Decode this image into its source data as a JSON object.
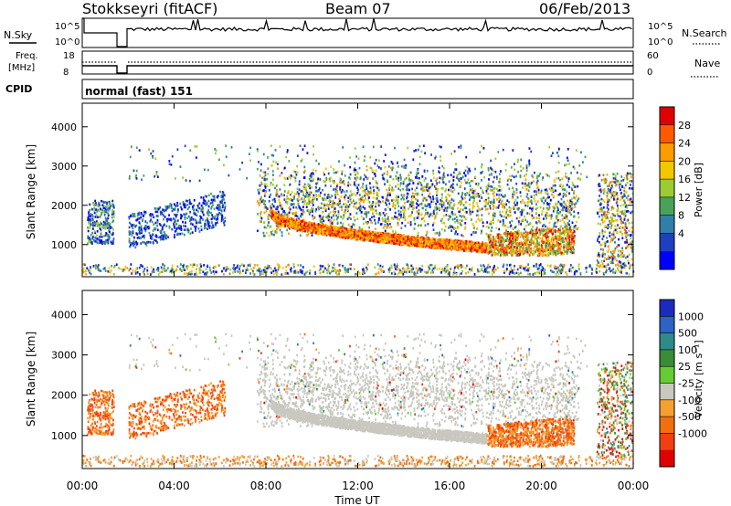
{
  "header": {
    "station": "Stokkseyri (fitACF)",
    "beam": "Beam 07",
    "date": "06/Feb/2013"
  },
  "panels": {
    "nsky_label": "N.Sky",
    "nsearch_label": "N.Search",
    "freq_label_1": "Freq.",
    "freq_label_2": "[MHz]",
    "nave_label": "Nave",
    "cpid_label": "CPID",
    "cpid_text": "normal (fast) 151",
    "nsky_ticks": [
      "10^5",
      "10^0"
    ],
    "nsearch_ticks": [
      "10^5",
      "10^0"
    ],
    "freq_ticks": [
      "18",
      "8"
    ],
    "nave_ticks": [
      "60",
      "0"
    ]
  },
  "colorbars": {
    "power": {
      "label": "Power [dB]",
      "ticks": [
        "28",
        "24",
        "20",
        "16",
        "12",
        "8",
        "4"
      ],
      "colors": [
        "#e00000",
        "#ff5a00",
        "#ff9a00",
        "#f2c800",
        "#9ccc32",
        "#4aa25a",
        "#2f7fa8",
        "#1f3fbf",
        "#0000ff"
      ]
    },
    "velocity": {
      "label": "Velocity [m s⁻¹]",
      "ticks": [
        "1000",
        "500",
        "100",
        "25",
        "-25",
        "-100",
        "-500",
        "-1000"
      ],
      "colors": [
        "#1c2bbf",
        "#2c63c4",
        "#2f8a8a",
        "#3a8c3a",
        "#66cc33",
        "#c8c8c0",
        "#f5a030",
        "#f07010",
        "#f04010",
        "#e00000"
      ]
    }
  },
  "chart_data": [
    {
      "type": "heatmap",
      "title": "",
      "ylabel": "Slant Range [km]",
      "xlabel": "",
      "quantity": "Power [dB]",
      "ylim": [
        180,
        4600
      ],
      "yticks": [
        "4000",
        "3000",
        "2000",
        "1000"
      ],
      "color_range_db": [
        0,
        32
      ]
    },
    {
      "type": "heatmap",
      "title": "",
      "ylabel": "Slant Range [km]",
      "xlabel": "Time UT",
      "quantity": "Velocity [m s-1]",
      "ylim": [
        180,
        4600
      ],
      "yticks": [
        "4000",
        "3000",
        "2000",
        "1000"
      ],
      "xticks": [
        "00:00",
        "04:00",
        "08:00",
        "12:00",
        "16:00",
        "20:00",
        "00:00"
      ],
      "xlim_hours": [
        0,
        24
      ]
    }
  ]
}
